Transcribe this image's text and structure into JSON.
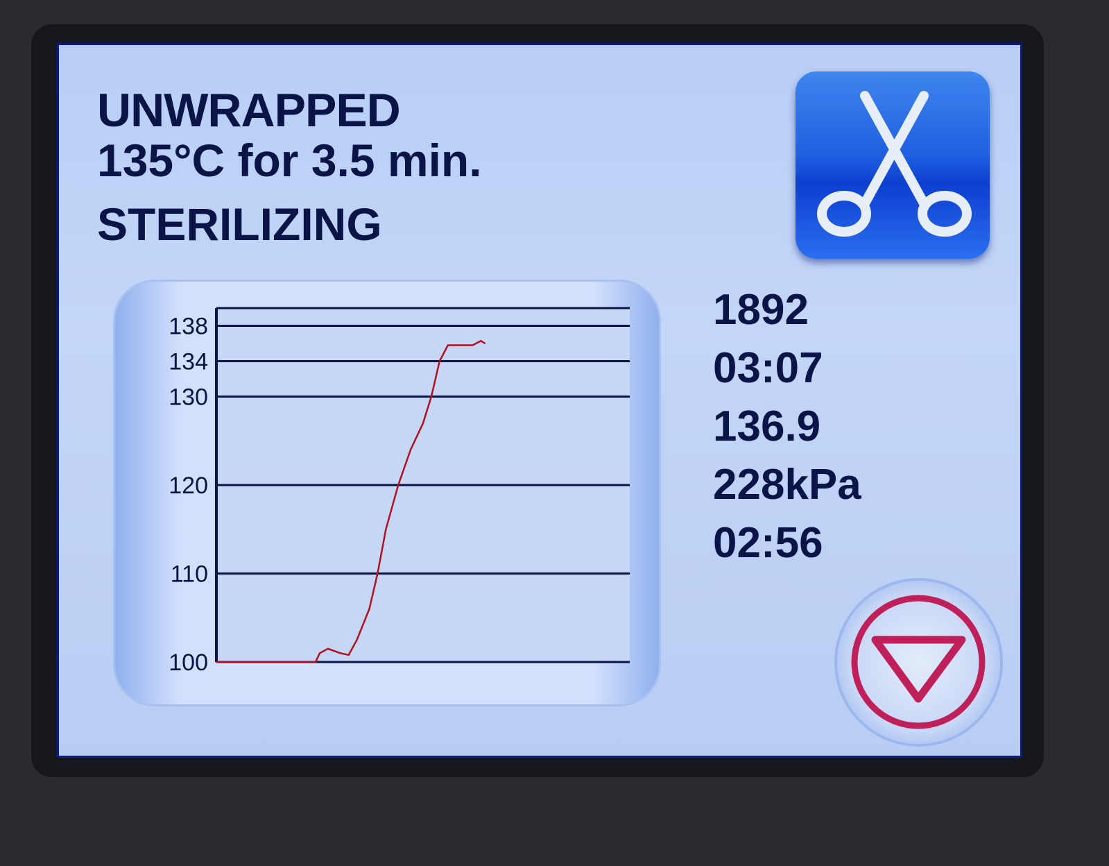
{
  "program": {
    "title": "UNWRAPPED",
    "setting": "135°C for 3.5 min.",
    "status": "STERILIZING"
  },
  "tool_button": {
    "icon": "scissors-icon"
  },
  "readouts": {
    "cycle_count": "1892",
    "elapsed_time": "03:07",
    "temperature": "136.9",
    "pressure": "228kPa",
    "remaining_time": "02:56"
  },
  "stop_button": {
    "icon": "triangle-down-icon",
    "color": "#c0205a"
  },
  "chart_data": {
    "type": "line",
    "title": "",
    "xlabel": "",
    "ylabel": "",
    "ylim": [
      100,
      140
    ],
    "xlim": [
      0,
      100
    ],
    "yticks": [
      100,
      110,
      120,
      130,
      134,
      138
    ],
    "grid": true,
    "series": [
      {
        "color": "#b01020",
        "points": [
          [
            0,
            100
          ],
          [
            24,
            100
          ],
          [
            25,
            101
          ],
          [
            27,
            101.5
          ],
          [
            30,
            101
          ],
          [
            32,
            100.8
          ],
          [
            34,
            102.5
          ],
          [
            37,
            106
          ],
          [
            39,
            110
          ],
          [
            41,
            115
          ],
          [
            44,
            120
          ],
          [
            47,
            124
          ],
          [
            50,
            127
          ],
          [
            52,
            130
          ],
          [
            54,
            134
          ],
          [
            56,
            135.8
          ],
          [
            62,
            135.8
          ],
          [
            64,
            136.3
          ],
          [
            65,
            136
          ]
        ]
      }
    ]
  }
}
